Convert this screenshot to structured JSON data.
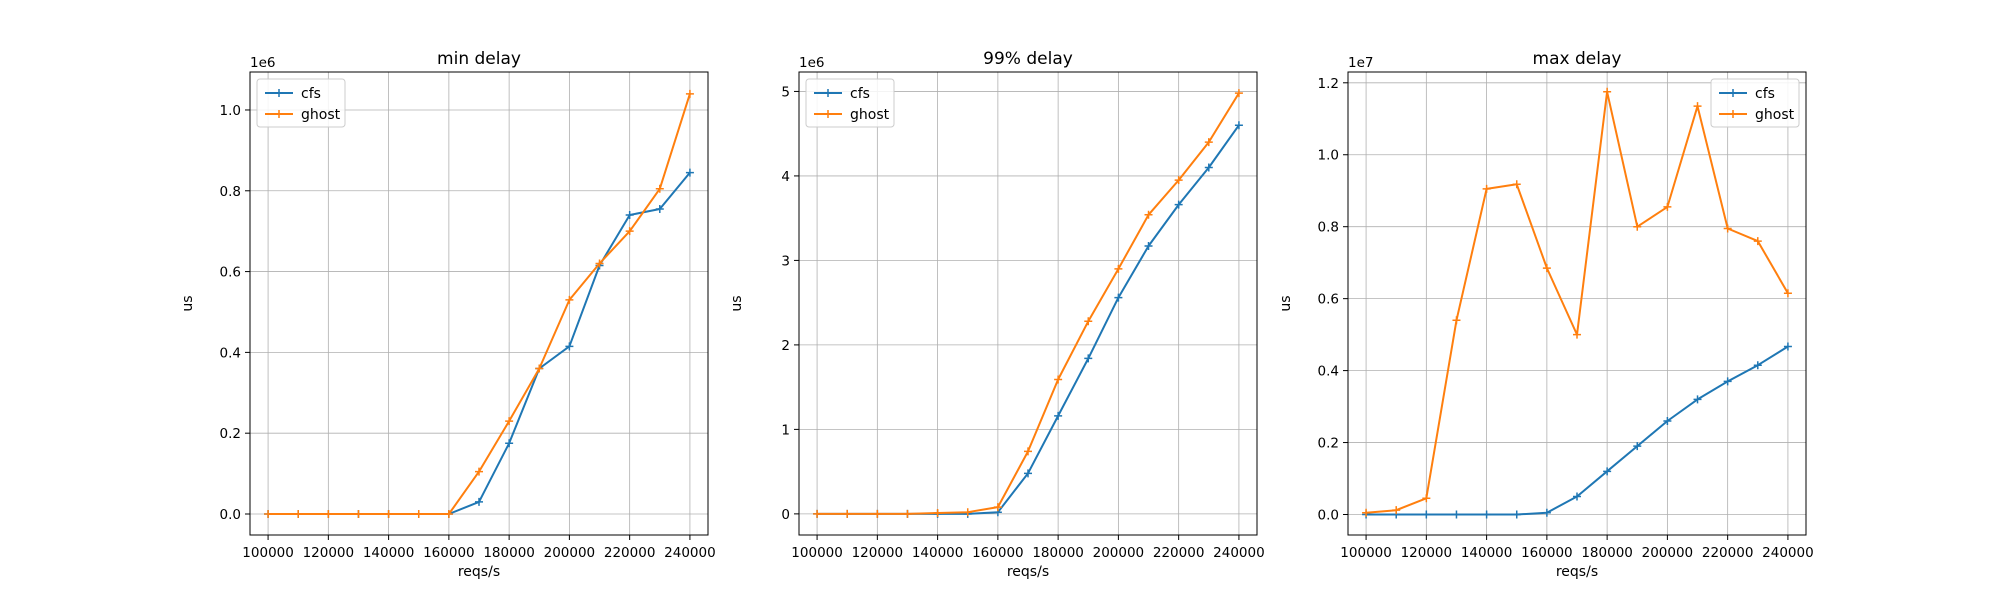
{
  "chart_data": [
    {
      "type": "line",
      "title": "min delay",
      "xlabel": "reqs/s",
      "ylabel": "us",
      "offset_label": "1e6",
      "x": [
        100000,
        110000,
        120000,
        130000,
        140000,
        150000,
        160000,
        170000,
        180000,
        190000,
        200000,
        210000,
        220000,
        230000,
        240000
      ],
      "xlim": [
        94000,
        246000
      ],
      "ylim": [
        -0.052,
        1.094
      ],
      "xticks": [
        100000,
        120000,
        140000,
        160000,
        180000,
        200000,
        220000,
        240000
      ],
      "xtick_labels": [
        "100000",
        "120000",
        "140000",
        "160000",
        "180000",
        "200000",
        "220000",
        "240000"
      ],
      "yticks": [
        0.0,
        0.2,
        0.4,
        0.6,
        0.8,
        1.0
      ],
      "ytick_labels": [
        "0.0",
        "0.2",
        "0.4",
        "0.6",
        "0.8",
        "1.0"
      ],
      "grid": true,
      "legend_position": "top-left",
      "series": [
        {
          "name": "cfs",
          "color": "#1f77b4",
          "values": [
            0,
            0,
            0,
            0,
            0,
            0,
            0,
            0.03,
            0.175,
            0.36,
            0.415,
            0.615,
            0.74,
            0.755,
            0.845
          ]
        },
        {
          "name": "ghost",
          "color": "#ff7f0e",
          "values": [
            0,
            0,
            0,
            0,
            0,
            0,
            0,
            0.105,
            0.23,
            0.36,
            0.53,
            0.62,
            0.7,
            0.805,
            1.04
          ]
        }
      ]
    },
    {
      "type": "line",
      "title": "99% delay",
      "xlabel": "reqs/s",
      "ylabel": "us",
      "offset_label": "1e6",
      "x": [
        100000,
        110000,
        120000,
        130000,
        140000,
        150000,
        160000,
        170000,
        180000,
        190000,
        200000,
        210000,
        220000,
        230000,
        240000
      ],
      "xlim": [
        94000,
        246000
      ],
      "ylim": [
        -0.25,
        5.23
      ],
      "xticks": [
        100000,
        120000,
        140000,
        160000,
        180000,
        200000,
        220000,
        240000
      ],
      "xtick_labels": [
        "100000",
        "120000",
        "140000",
        "160000",
        "180000",
        "200000",
        "220000",
        "240000"
      ],
      "yticks": [
        0,
        1,
        2,
        3,
        4,
        5
      ],
      "ytick_labels": [
        "0",
        "1",
        "2",
        "3",
        "4",
        "5"
      ],
      "grid": true,
      "legend_position": "top-left",
      "series": [
        {
          "name": "cfs",
          "color": "#1f77b4",
          "values": [
            0,
            0,
            0,
            0,
            0,
            0,
            0.02,
            0.48,
            1.16,
            1.84,
            2.56,
            3.17,
            3.66,
            4.1,
            4.6
          ]
        },
        {
          "name": "ghost",
          "color": "#ff7f0e",
          "values": [
            0,
            0,
            0,
            0,
            0.01,
            0.02,
            0.08,
            0.74,
            1.59,
            2.28,
            2.9,
            3.54,
            3.95,
            4.4,
            4.98
          ]
        }
      ]
    },
    {
      "type": "line",
      "title": "max delay",
      "xlabel": "reqs/s",
      "ylabel": "us",
      "offset_label": "1e7",
      "x": [
        100000,
        110000,
        120000,
        130000,
        140000,
        150000,
        160000,
        170000,
        180000,
        190000,
        200000,
        210000,
        220000,
        230000,
        240000
      ],
      "xlim": [
        94000,
        246000
      ],
      "ylim": [
        -0.057,
        1.23
      ],
      "xticks": [
        100000,
        120000,
        140000,
        160000,
        180000,
        200000,
        220000,
        240000
      ],
      "xtick_labels": [
        "100000",
        "120000",
        "140000",
        "160000",
        "180000",
        "200000",
        "220000",
        "240000"
      ],
      "yticks": [
        0.0,
        0.2,
        0.4,
        0.6,
        0.8,
        1.0,
        1.2
      ],
      "ytick_labels": [
        "0.0",
        "0.2",
        "0.4",
        "0.6",
        "0.8",
        "1.0",
        "1.2"
      ],
      "grid": true,
      "legend_position": "top-right",
      "series": [
        {
          "name": "cfs",
          "color": "#1f77b4",
          "values": [
            0,
            0,
            0,
            0,
            0,
            0,
            0.005,
            0.05,
            0.12,
            0.19,
            0.26,
            0.32,
            0.37,
            0.415,
            0.467
          ]
        },
        {
          "name": "ghost",
          "color": "#ff7f0e",
          "values": [
            0.005,
            0.012,
            0.045,
            0.54,
            0.905,
            0.918,
            0.685,
            0.5,
            1.175,
            0.8,
            0.855,
            1.135,
            0.795,
            0.76,
            0.615
          ]
        }
      ]
    }
  ]
}
